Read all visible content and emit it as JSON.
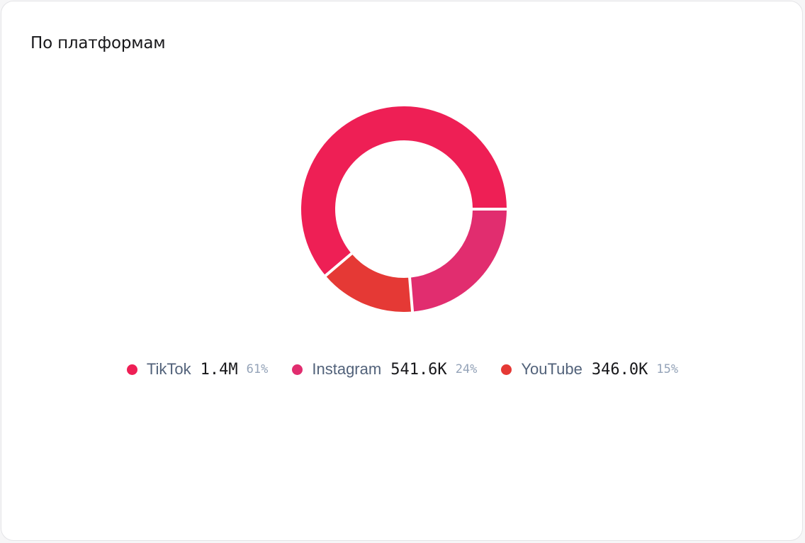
{
  "card": {
    "title": "По платформам"
  },
  "chart_data": {
    "type": "pie",
    "donut": true,
    "title": "По платформам",
    "categories": [
      "TikTok",
      "Instagram",
      "YouTube"
    ],
    "values": [
      1400000,
      541600,
      346000
    ],
    "value_labels": [
      "1.4M",
      "541.6K",
      "346.0K"
    ],
    "percent_labels": [
      "61%",
      "24%",
      "15%"
    ],
    "percents": [
      61,
      24,
      15
    ],
    "colors": [
      "#ee1f55",
      "#e12d6f",
      "#e53935"
    ],
    "legend_position": "bottom"
  }
}
